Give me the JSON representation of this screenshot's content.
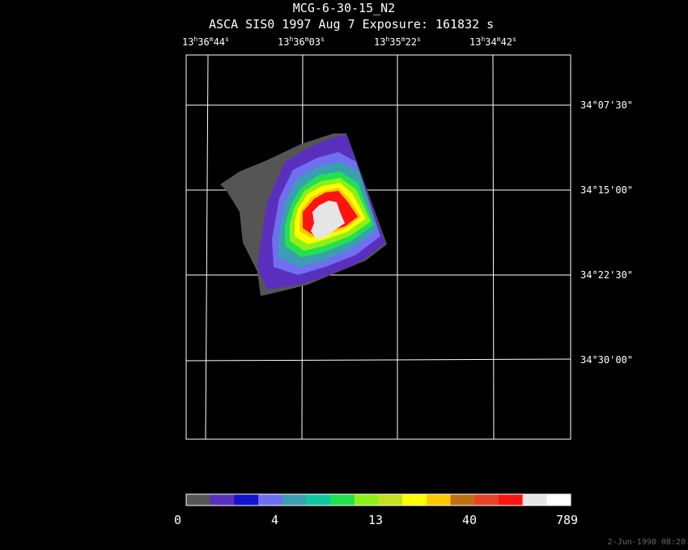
{
  "header": {
    "title": "MCG-6-30-15_N2",
    "subtitle": "ASCA SIS0    1997 Aug  7    Exposure: 161832 s"
  },
  "ra_labels": [
    {
      "h": "13",
      "m": "36",
      "s": "44"
    },
    {
      "h": "13",
      "m": "36",
      "s": "03"
    },
    {
      "h": "13",
      "m": "35",
      "s": "22"
    },
    {
      "h": "13",
      "m": "34",
      "s": "42"
    }
  ],
  "dec_labels": [
    "34°07'30\"",
    "34°15'00\"",
    "34°22'30\"",
    "34°30'00\""
  ],
  "colorbar": {
    "colors": [
      "#555555",
      "#5a2fbd",
      "#1212d0",
      "#6f6ff0",
      "#3a9fb0",
      "#0fc8a0",
      "#22e050",
      "#8ef016",
      "#c6e21e",
      "#ffff00",
      "#ffc800",
      "#c07012",
      "#e8422a",
      "#ff1414",
      "#e6e6e6",
      "#ffffff"
    ],
    "labels": [
      "0",
      "4",
      "13",
      "40",
      "789"
    ]
  },
  "timestamp": "2-Jun-1998 08:20"
}
